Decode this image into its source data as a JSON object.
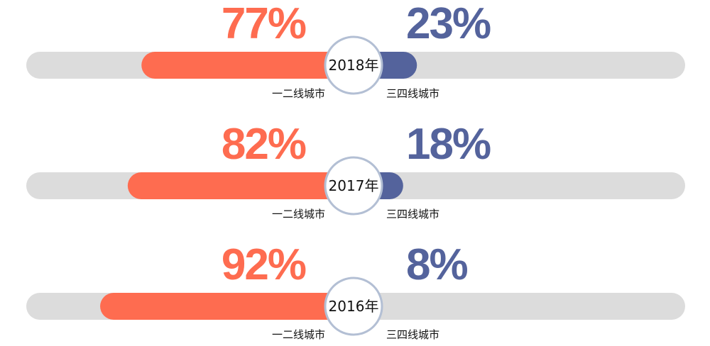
{
  "colors": {
    "left": "#fe6c50",
    "right": "#54639c",
    "track": "#dcdcdc",
    "circle_stroke": "#b3bfd4",
    "label": "#111111"
  },
  "chart_data": {
    "type": "bar",
    "orientation": "horizontal-diverging",
    "categories": [
      "2018年",
      "2017年",
      "2016年"
    ],
    "series": [
      {
        "name": "一二线城市",
        "values": [
          77,
          82,
          92
        ],
        "value_labels": [
          "77%",
          "82%",
          "92%"
        ]
      },
      {
        "name": "三四线城市",
        "values": [
          23,
          18,
          8
        ],
        "value_labels": [
          "23%",
          "18%",
          "8%"
        ]
      }
    ],
    "unit": "%",
    "xlim": [
      0,
      100
    ]
  }
}
